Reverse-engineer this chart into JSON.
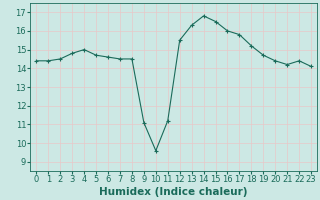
{
  "title": "",
  "xlabel": "Humidex (Indice chaleur)",
  "ylabel": "",
  "background_color": "#cce8e4",
  "grid_color": "#e8c8c8",
  "line_color": "#1a6b5a",
  "marker_color": "#1a6b5a",
  "xlim": [
    -0.5,
    23.5
  ],
  "ylim": [
    8.5,
    17.5
  ],
  "yticks": [
    9,
    10,
    11,
    12,
    13,
    14,
    15,
    16,
    17
  ],
  "xticks": [
    0,
    1,
    2,
    3,
    4,
    5,
    6,
    7,
    8,
    9,
    10,
    11,
    12,
    13,
    14,
    15,
    16,
    17,
    18,
    19,
    20,
    21,
    22,
    23
  ],
  "x": [
    0,
    1,
    2,
    3,
    4,
    5,
    6,
    7,
    8,
    9,
    10,
    11,
    12,
    13,
    14,
    15,
    16,
    17,
    18,
    19,
    20,
    21,
    22,
    23
  ],
  "y": [
    14.4,
    14.4,
    14.5,
    14.8,
    15.0,
    14.7,
    14.6,
    14.5,
    14.5,
    11.1,
    9.6,
    11.2,
    15.5,
    16.3,
    16.8,
    16.5,
    16.0,
    15.8,
    15.2,
    14.7,
    14.4,
    14.2,
    14.4,
    14.1
  ],
  "tick_fontsize": 6,
  "label_fontsize": 7.5
}
